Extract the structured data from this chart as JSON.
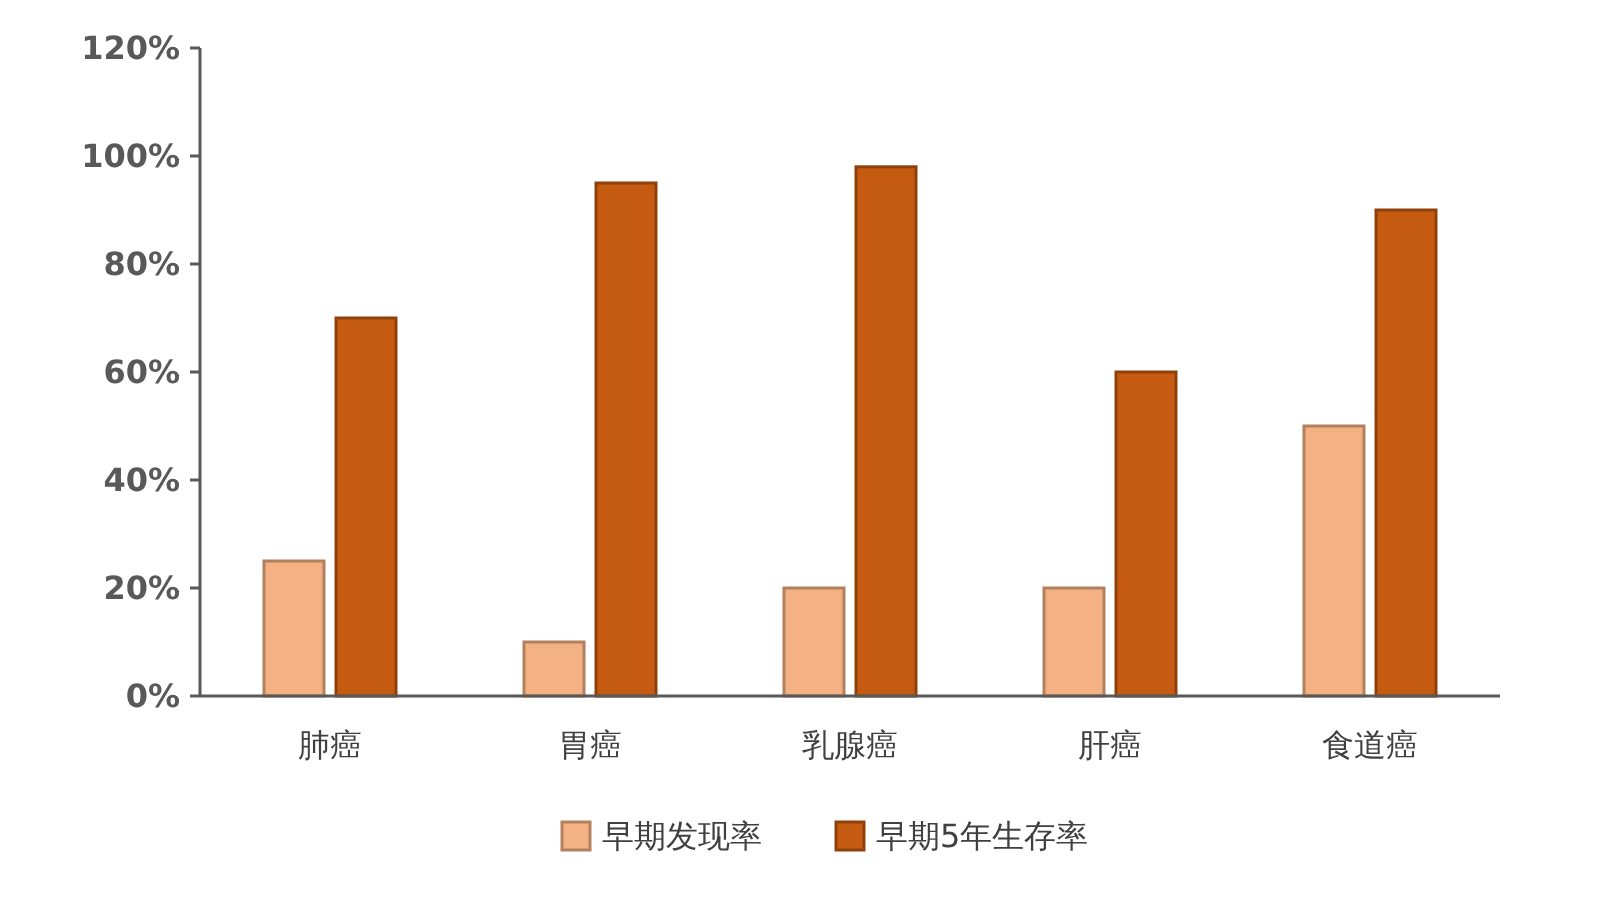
{
  "chart_data": {
    "type": "bar",
    "categories": [
      "肺癌",
      "胃癌",
      "乳腺癌",
      "肝癌",
      "食道癌"
    ],
    "series": [
      {
        "name": "早期发现率",
        "color": "#f4b183",
        "values": [
          25,
          10,
          20,
          20,
          50
        ]
      },
      {
        "name": "早期5年生存率",
        "color": "#c55a11",
        "values": [
          70,
          95,
          98,
          60,
          90
        ]
      }
    ],
    "ylim": [
      0,
      120
    ],
    "yticks": [
      {
        "value": 0,
        "label": "0%"
      },
      {
        "value": 20,
        "label": "20%"
      },
      {
        "value": 40,
        "label": "40%"
      },
      {
        "value": 60,
        "label": "60%"
      },
      {
        "value": 80,
        "label": "80%"
      },
      {
        "value": 100,
        "label": "100%"
      },
      {
        "value": 120,
        "label": "120%"
      }
    ],
    "grid": false,
    "legend": "bottom"
  }
}
